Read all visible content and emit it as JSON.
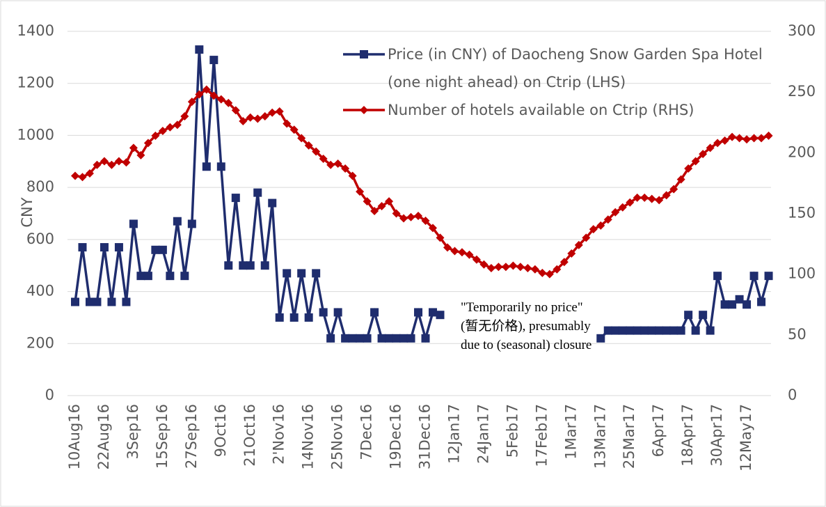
{
  "chart_data": {
    "type": "line",
    "y_label": "CNY",
    "annotation": "\"Temporarily no price\" (暂无价格), presumably due to (seasonal) closure",
    "categories": [
      "10Aug16",
      null,
      null,
      null,
      "22Aug16",
      null,
      null,
      null,
      "3Sep16",
      null,
      null,
      null,
      "15Sep16",
      null,
      null,
      null,
      "27Sep16",
      null,
      null,
      null,
      "9Oct16",
      null,
      null,
      null,
      "21Oct16",
      null,
      null,
      null,
      "2'Nov16",
      null,
      null,
      null,
      "14Nov16",
      null,
      null,
      null,
      "25Nov16",
      null,
      null,
      null,
      "7Dec16",
      null,
      null,
      null,
      "19Dec16",
      null,
      null,
      null,
      "31Dec16",
      null,
      null,
      null,
      "12Jan17",
      null,
      null,
      null,
      "24Jan17",
      null,
      null,
      null,
      "5Feb17",
      null,
      null,
      null,
      "17Feb17",
      null,
      null,
      null,
      "1Mar17",
      null,
      null,
      null,
      "13Mar17",
      null,
      null,
      null,
      "25Mar17",
      null,
      null,
      null,
      "6Apr17",
      null,
      null,
      null,
      "18Apr17",
      null,
      null,
      null,
      "30Apr17",
      null,
      null,
      null,
      "12May17",
      null,
      null,
      null
    ],
    "ylim": [
      0,
      1400
    ],
    "yticks": [
      0,
      200,
      400,
      600,
      800,
      1000,
      1200,
      1400
    ],
    "y2lim": [
      0,
      300
    ],
    "y2ticks": [
      0,
      50,
      100,
      150,
      200,
      250,
      300
    ],
    "grid": true,
    "series": [
      {
        "name": "Price (in CNY) of Daocheng Snow Garden Spa Hotel (one night ahead) on Ctrip (LHS)",
        "color": "#1f2d6e",
        "marker": "square",
        "values": [
          360,
          570,
          360,
          360,
          570,
          360,
          570,
          360,
          660,
          460,
          460,
          560,
          560,
          460,
          670,
          460,
          660,
          1330,
          880,
          1290,
          880,
          500,
          760,
          500,
          500,
          780,
          500,
          740,
          300,
          470,
          300,
          470,
          300,
          470,
          320,
          220,
          320,
          220,
          220,
          220,
          220,
          320,
          220,
          220,
          220,
          220,
          220,
          320,
          220,
          320,
          310,
          null,
          null,
          null,
          null,
          null,
          null,
          null,
          null,
          null,
          null,
          null,
          null,
          null,
          null,
          null,
          null,
          null,
          null,
          null,
          null,
          null,
          220,
          250,
          250,
          250,
          250,
          250,
          250,
          250,
          250,
          250,
          250,
          250,
          310,
          250,
          310,
          250,
          460,
          350,
          350,
          370,
          350,
          460,
          360,
          460
        ]
      },
      {
        "name": "Number of hotels available on Ctrip (RHS)",
        "color": "#c00000",
        "marker": "diamond",
        "axis": "y2",
        "values": [
          181,
          180,
          183,
          190,
          193,
          190,
          193,
          192,
          204,
          198,
          208,
          214,
          218,
          221,
          223,
          230,
          242,
          248,
          252,
          247,
          244,
          241,
          235,
          226,
          229,
          228,
          230,
          233,
          234,
          224,
          219,
          212,
          206,
          201,
          195,
          190,
          191,
          187,
          181,
          168,
          160,
          152,
          156,
          160,
          150,
          146,
          147,
          148,
          144,
          138,
          130,
          122,
          119,
          118,
          116,
          112,
          108,
          105,
          106,
          106,
          107,
          106,
          105,
          104,
          101,
          100,
          104,
          110,
          117,
          124,
          130,
          137,
          140,
          145,
          151,
          155,
          159,
          163,
          163,
          162,
          161,
          165,
          170,
          178,
          187,
          193,
          199,
          204,
          208,
          210,
          213,
          212,
          211,
          212,
          212,
          214
        ]
      }
    ]
  }
}
